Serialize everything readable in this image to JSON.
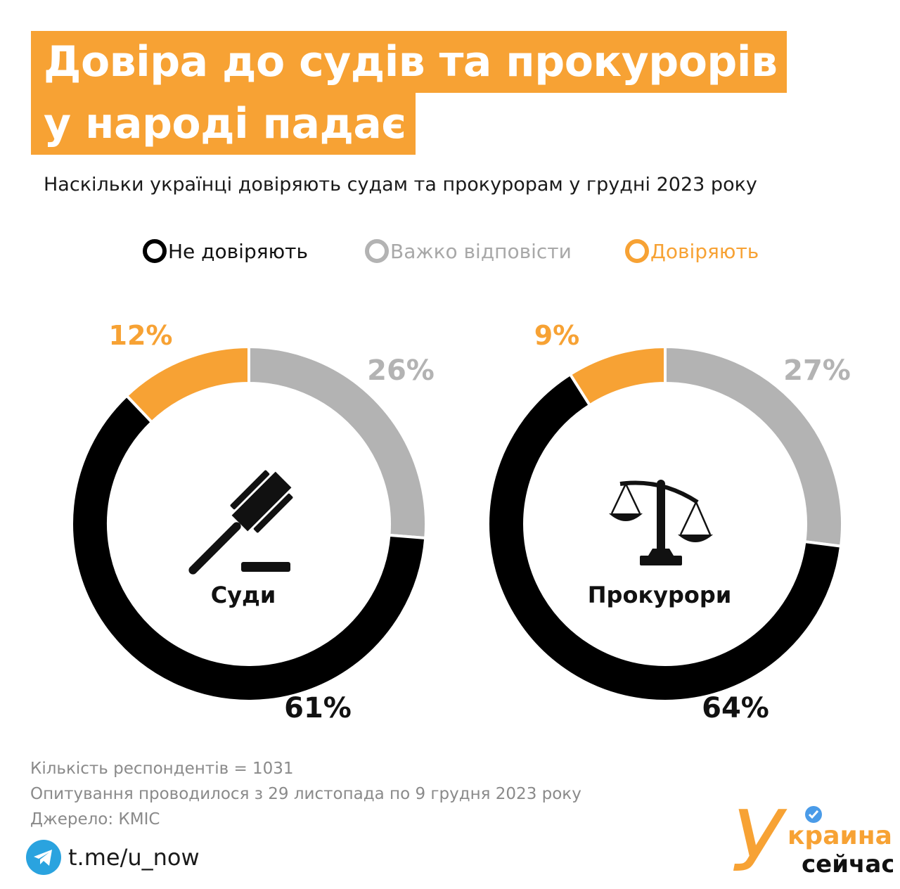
{
  "header": {
    "title_line1": "Довіра до судів та прокурорів",
    "title_line2": "у народі падає",
    "subtitle": "Наскільки українці довіряють судам та прокурорам у грудні 2023 року"
  },
  "legend": [
    {
      "label": "Не довіряють",
      "color": "#000000"
    },
    {
      "label": "Важко відповісти",
      "color": "#b3b3b3"
    },
    {
      "label": "Довіряють",
      "color": "#f7a234"
    }
  ],
  "chart_data": [
    {
      "type": "pie",
      "title": "Суди",
      "icon": "gavel-icon",
      "categories": [
        "Не довіряють",
        "Важко відповісти",
        "Довіряють"
      ],
      "values": [
        61,
        26,
        12
      ],
      "labels": [
        "61%",
        "26%",
        "12%"
      ],
      "colors": [
        "#000000",
        "#b3b3b3",
        "#f7a234"
      ]
    },
    {
      "type": "pie",
      "title": "Прокурори",
      "icon": "scales-icon",
      "categories": [
        "Не довіряють",
        "Важко відповісти",
        "Довіряють"
      ],
      "values": [
        64,
        27,
        9
      ],
      "labels": [
        "64%",
        "27%",
        "9%"
      ],
      "colors": [
        "#000000",
        "#b3b3b3",
        "#f7a234"
      ]
    }
  ],
  "footer": {
    "respondents": "Кількість респондентів = 1031",
    "period": "Опитування проводилося з 29 листопада по 9 грудня 2023 року",
    "source": "Джерело: КМІС"
  },
  "social": {
    "telegram_link": "t.me/u_now",
    "icon": "telegram-icon"
  },
  "logo": {
    "letter": "У",
    "line1": "краина",
    "line2": "сейчас",
    "badge_icon": "verified-badge-icon"
  }
}
